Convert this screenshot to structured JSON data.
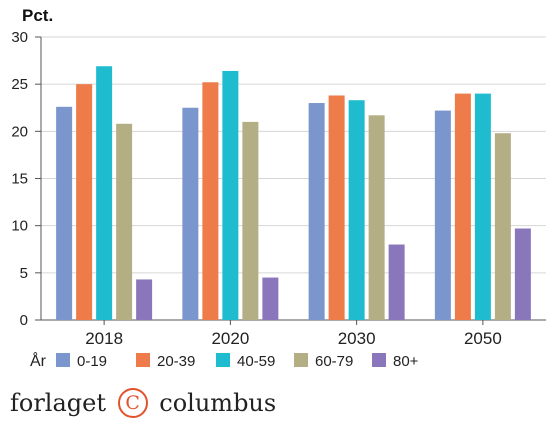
{
  "chart_data": {
    "type": "bar",
    "ylabel": "Pct.",
    "ylim": [
      0,
      30
    ],
    "yticks": [
      0,
      5,
      10,
      15,
      20,
      25,
      30
    ],
    "categories": [
      "2018",
      "2020",
      "2030",
      "2050"
    ],
    "legend_title": "År",
    "legend_position": "bottom",
    "grid": true,
    "series": [
      {
        "name": "0-19",
        "color": "#7b96cc",
        "values": [
          22.6,
          22.5,
          23.0,
          22.2
        ]
      },
      {
        "name": "20-39",
        "color": "#ee7b4a",
        "values": [
          25.0,
          25.2,
          23.8,
          24.0
        ]
      },
      {
        "name": "40-59",
        "color": "#1fbcd0",
        "values": [
          26.9,
          26.4,
          23.3,
          24.0
        ]
      },
      {
        "name": "60-79",
        "color": "#b4ae84",
        "values": [
          20.8,
          21.0,
          21.7,
          19.8
        ]
      },
      {
        "name": "80+",
        "color": "#8a77bb",
        "values": [
          4.3,
          4.5,
          8.0,
          9.7
        ]
      }
    ]
  },
  "brand": {
    "left": "forlaget",
    "mark": "C",
    "right": "columbus"
  }
}
